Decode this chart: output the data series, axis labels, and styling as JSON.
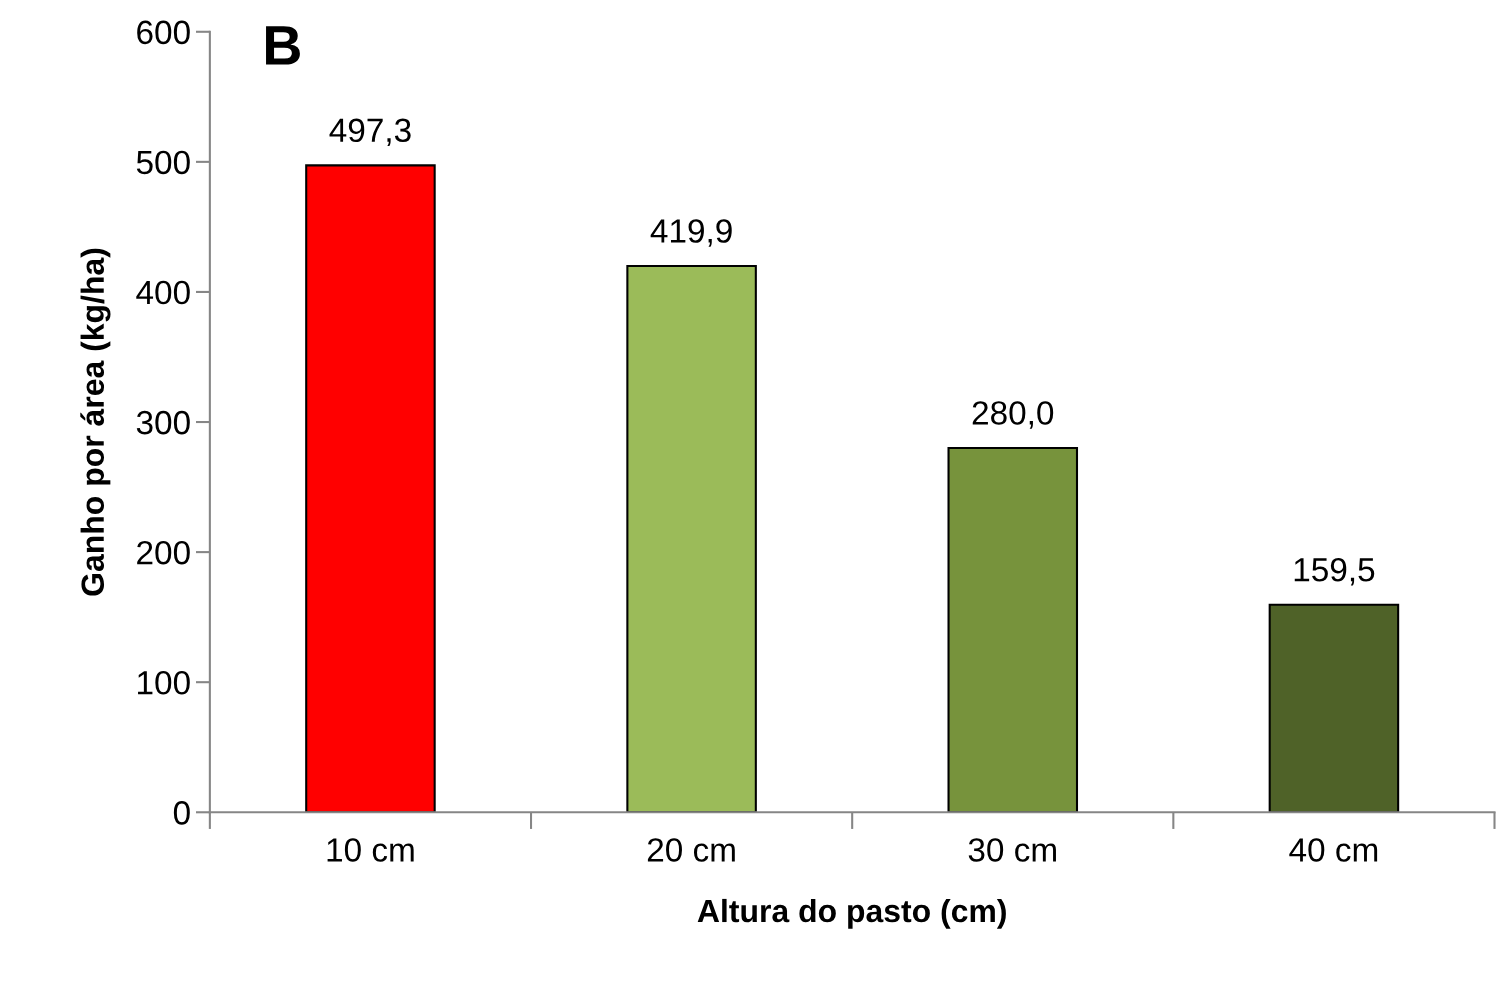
{
  "chart_data": {
    "type": "bar",
    "xlabel": "Altura do pasto (cm)",
    "ylabel": "Ganho por área (kg/ha)",
    "annotations": [
      "B"
    ],
    "categories": [
      "10 cm",
      "20 cm",
      "30 cm",
      "40 cm"
    ],
    "values": [
      497.3,
      419.9,
      280.0,
      159.5
    ],
    "value_labels": [
      "497,3",
      "419,9",
      "280,0",
      "159,5"
    ],
    "colors": [
      "#ff0000",
      "#9bbb59",
      "#77933c",
      "#4f6228"
    ],
    "ylim": [
      0,
      600
    ],
    "yticks": [
      0,
      100,
      200,
      300,
      400,
      500,
      600
    ]
  }
}
